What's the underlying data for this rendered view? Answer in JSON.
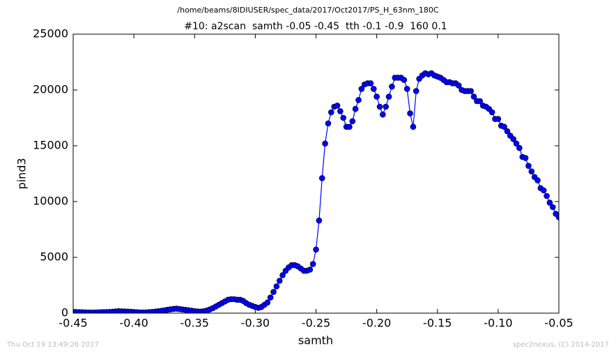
{
  "chart_data": {
    "type": "line",
    "suptitle": "/home/beams/8IDIUSER/spec_data/2017/Oct2017/PS_H_63nm_180C",
    "title": "#10: a2scan  samth -0.05 -0.45  tth -0.1 -0.9  160 0.1",
    "xlabel": "samth",
    "ylabel": "pind3",
    "footer_left": "Thu Oct 19 13:49:26 2017",
    "footer_right": "spec2nexus, (C) 2014-2017",
    "xlim": [
      -0.45,
      -0.05
    ],
    "ylim": [
      0,
      25000
    ],
    "xticks": [
      -0.45,
      {
        "value": -0.4,
        "label": "-0.40"
      },
      -0.35,
      {
        "value": -0.3,
        "label": "-0.30"
      },
      -0.25,
      {
        "value": -0.2,
        "label": "-0.20"
      },
      -0.15,
      {
        "value": -0.1,
        "label": "-0.10"
      },
      -0.05
    ],
    "yticks": [
      0,
      5000,
      10000,
      15000,
      20000,
      25000
    ],
    "x": [
      -0.45,
      -0.4475,
      -0.445,
      -0.4425,
      -0.44,
      -0.4375,
      -0.435,
      -0.4325,
      -0.43,
      -0.4275,
      -0.425,
      -0.4225,
      -0.42,
      -0.4175,
      -0.415,
      -0.4125,
      -0.41,
      -0.4075,
      -0.405,
      -0.4025,
      -0.4,
      -0.3975,
      -0.395,
      -0.3925,
      -0.39,
      -0.3875,
      -0.385,
      -0.3825,
      -0.38,
      -0.3775,
      -0.375,
      -0.3725,
      -0.37,
      -0.3675,
      -0.365,
      -0.3625,
      -0.36,
      -0.3575,
      -0.355,
      -0.3525,
      -0.35,
      -0.3475,
      -0.345,
      -0.3425,
      -0.34,
      -0.3375,
      -0.335,
      -0.3325,
      -0.33,
      -0.3275,
      -0.325,
      -0.3225,
      -0.32,
      -0.3175,
      -0.315,
      -0.3125,
      -0.31,
      -0.3075,
      -0.305,
      -0.3025,
      -0.3,
      -0.2975,
      -0.295,
      -0.2925,
      -0.29,
      -0.2875,
      -0.285,
      -0.2825,
      -0.28,
      -0.2775,
      -0.275,
      -0.2725,
      -0.27,
      -0.2675,
      -0.265,
      -0.2625,
      -0.26,
      -0.2575,
      -0.255,
      -0.2525,
      -0.25,
      -0.2475,
      -0.245,
      -0.2425,
      -0.24,
      -0.2375,
      -0.235,
      -0.2325,
      -0.23,
      -0.2275,
      -0.225,
      -0.2225,
      -0.22,
      -0.2175,
      -0.215,
      -0.2125,
      -0.21,
      -0.2075,
      -0.205,
      -0.2025,
      -0.2,
      -0.1975,
      -0.195,
      -0.1925,
      -0.19,
      -0.1875,
      -0.185,
      -0.1825,
      -0.18,
      -0.1775,
      -0.175,
      -0.1725,
      -0.17,
      -0.1675,
      -0.165,
      -0.1625,
      -0.16,
      -0.1575,
      -0.155,
      -0.1525,
      -0.15,
      -0.1475,
      -0.145,
      -0.1425,
      -0.14,
      -0.1375,
      -0.135,
      -0.1325,
      -0.13,
      -0.1275,
      -0.125,
      -0.1225,
      -0.12,
      -0.1175,
      -0.115,
      -0.1125,
      -0.11,
      -0.1075,
      -0.105,
      -0.1025,
      -0.1,
      -0.0975,
      -0.095,
      -0.0925,
      -0.09,
      -0.0875,
      -0.085,
      -0.0825,
      -0.08,
      -0.0775,
      -0.075,
      -0.0725,
      -0.07,
      -0.0675,
      -0.065,
      -0.0625,
      -0.06,
      -0.0575,
      -0.055,
      -0.0525,
      -0.05
    ],
    "series": [
      {
        "color": "#0000ff",
        "values": [
          120,
          100,
          90,
          80,
          70,
          60,
          50,
          60,
          70,
          80,
          90,
          100,
          110,
          130,
          150,
          180,
          160,
          150,
          140,
          120,
          100,
          80,
          70,
          60,
          70,
          90,
          110,
          140,
          170,
          210,
          250,
          300,
          340,
          380,
          400,
          370,
          330,
          300,
          260,
          220,
          180,
          150,
          140,
          170,
          230,
          330,
          450,
          600,
          750,
          900,
          1050,
          1200,
          1250,
          1250,
          1200,
          1200,
          1100,
          900,
          750,
          650,
          550,
          480,
          550,
          750,
          950,
          1400,
          1900,
          2400,
          2900,
          3400,
          3800,
          4100,
          4300,
          4300,
          4200,
          4000,
          3800,
          3800,
          3900,
          4400,
          5700,
          8300,
          12100,
          15200,
          17000,
          18000,
          18500,
          18600,
          18100,
          17500,
          16700,
          16700,
          17200,
          18300,
          19100,
          20100,
          20500,
          20600,
          20600,
          20100,
          19400,
          18500,
          17800,
          18500,
          19400,
          20300,
          21100,
          21100,
          21100,
          20900,
          20100,
          17900,
          16700,
          19900,
          21000,
          21300,
          21500,
          21400,
          21500,
          21300,
          21200,
          21100,
          20900,
          20700,
          20700,
          20600,
          20600,
          20400,
          20000,
          19900,
          19900,
          19900,
          19400,
          19000,
          19000,
          18600,
          18500,
          18300,
          18000,
          17400,
          17400,
          16800,
          16700,
          16300,
          15900,
          15600,
          15200,
          14800,
          14000,
          13900,
          13200,
          12700,
          12200,
          11900,
          11200,
          11000,
          10500,
          9900,
          9500,
          8900,
          8600
        ]
      }
    ]
  }
}
